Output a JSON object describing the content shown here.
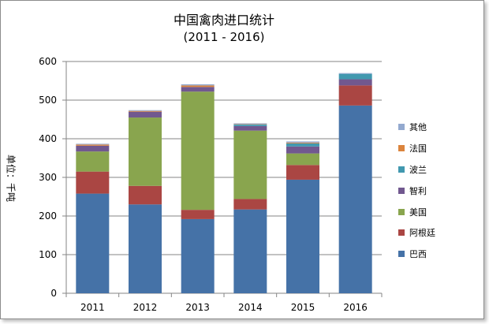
{
  "chart_data": {
    "type": "bar",
    "stacked": true,
    "title": "中国禽肉进口统计",
    "subtitle": "(2011 - 2016)",
    "ylabel": "单位：千吨",
    "ylim": [
      0,
      600
    ],
    "yticks": [
      0,
      100,
      200,
      300,
      400,
      500,
      600
    ],
    "grid": true,
    "legend_position": "right",
    "categories": [
      "2011",
      "2012",
      "2013",
      "2014",
      "2015",
      "2016"
    ],
    "series": [
      {
        "name": "巴西",
        "color": "#4572A7",
        "values": [
          258,
          230,
          192,
          217,
          294,
          486
        ]
      },
      {
        "name": "阿根廷",
        "color": "#AA4643",
        "values": [
          57,
          48,
          24,
          27,
          38,
          52
        ]
      },
      {
        "name": "美国",
        "color": "#89A54E",
        "values": [
          52,
          177,
          306,
          177,
          30,
          0
        ]
      },
      {
        "name": "智利",
        "color": "#71588F",
        "values": [
          15,
          15,
          12,
          12,
          18,
          16
        ]
      },
      {
        "name": "波兰",
        "color": "#4198AF",
        "values": [
          0,
          0,
          0,
          4,
          8,
          14
        ]
      },
      {
        "name": "法国",
        "color": "#DB843D",
        "values": [
          3,
          2,
          4,
          1,
          2,
          0
        ]
      },
      {
        "name": "其他",
        "color": "#93A9CF",
        "values": [
          2,
          2,
          3,
          2,
          3,
          2
        ]
      }
    ]
  }
}
